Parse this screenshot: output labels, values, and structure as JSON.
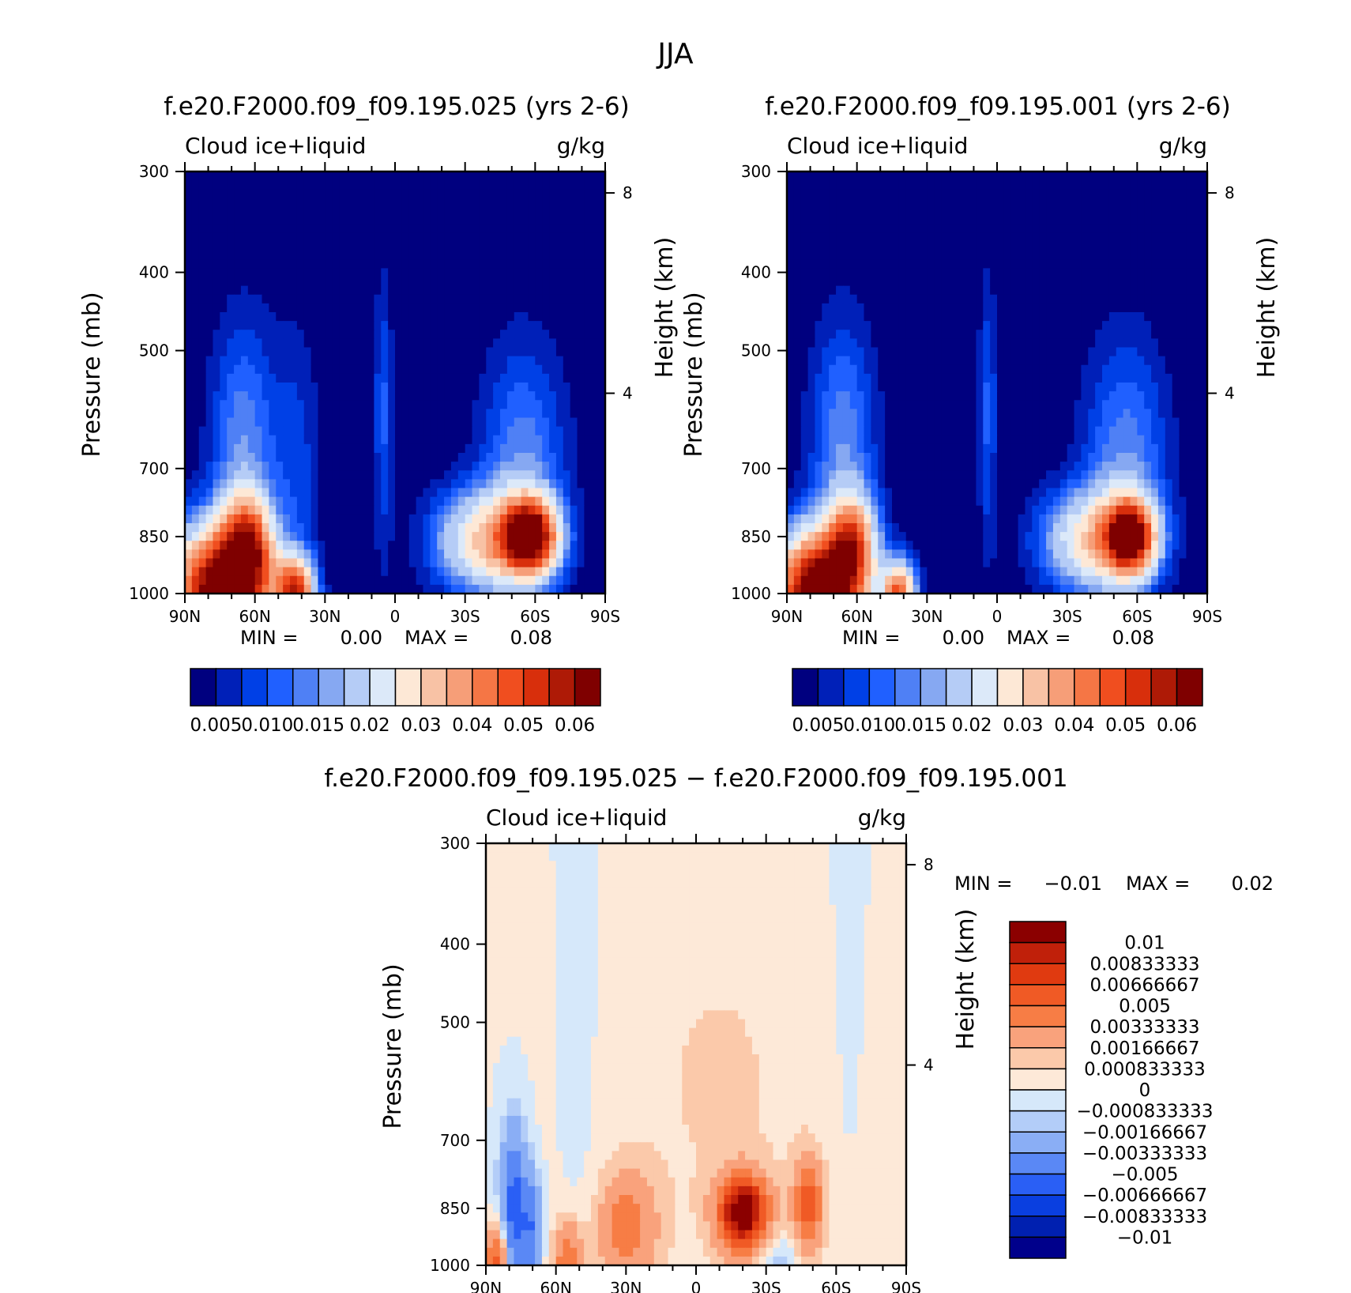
{
  "chart_data": [
    {
      "type": "contour",
      "title": "f.e20.F2000.f09_f09.195.025 (yrs 2-6)",
      "variable": "Cloud ice+liquid",
      "units": "g/kg",
      "xlabel": "",
      "ylabel": "Pressure (mb)",
      "y2label": "Height (km)",
      "x_ticks": [
        "90N",
        "60N",
        "30N",
        "0",
        "30S",
        "60S",
        "90S"
      ],
      "y_ticks": [
        300,
        400,
        500,
        700,
        850,
        1000
      ],
      "y2_ticks": [
        8,
        4
      ],
      "ylim": [
        1000,
        300
      ],
      "min_label": "MIN =",
      "min_value": "0.00",
      "max_label": "MAX =",
      "max_value": "0.08",
      "colorbar_labels": [
        "0.005",
        "0.010",
        "0.015",
        "0.02",
        "0.03",
        "0.04",
        "0.05",
        "0.06"
      ],
      "colors": [
        "#00007f",
        "#0020b8",
        "#0040e6",
        "#2060ff",
        "#4f80f5",
        "#86a8f2",
        "#b5ccf6",
        "#dce9f9",
        "#fde8d6",
        "#f8c2a5",
        "#f69e78",
        "#f57645",
        "#f04e1f",
        "#d82f0c",
        "#ae1a06",
        "#7f0000"
      ]
    },
    {
      "type": "contour",
      "title": "f.e20.F2000.f09_f09.195.001 (yrs 2-6)",
      "variable": "Cloud ice+liquid",
      "units": "g/kg",
      "xlabel": "",
      "ylabel": "Pressure (mb)",
      "y2label": "Height (km)",
      "x_ticks": [
        "90N",
        "60N",
        "30N",
        "0",
        "30S",
        "60S",
        "90S"
      ],
      "y_ticks": [
        300,
        400,
        500,
        700,
        850,
        1000
      ],
      "y2_ticks": [
        8,
        4
      ],
      "ylim": [
        1000,
        300
      ],
      "min_label": "MIN =",
      "min_value": "0.00",
      "max_label": "MAX =",
      "max_value": "0.08",
      "colorbar_labels": [
        "0.005",
        "0.010",
        "0.015",
        "0.02",
        "0.03",
        "0.04",
        "0.05",
        "0.06"
      ],
      "colors": [
        "#00007f",
        "#0020b8",
        "#0040e6",
        "#2060ff",
        "#4f80f5",
        "#86a8f2",
        "#b5ccf6",
        "#dce9f9",
        "#fde8d6",
        "#f8c2a5",
        "#f69e78",
        "#f57645",
        "#f04e1f",
        "#d82f0c",
        "#ae1a06",
        "#7f0000"
      ]
    },
    {
      "type": "contour",
      "title": "f.e20.F2000.f09_f09.195.025 − f.e20.F2000.f09_f09.195.001",
      "variable": "Cloud ice+liquid",
      "units": "g/kg",
      "xlabel": "",
      "ylabel": "Pressure (mb)",
      "y2label": "Height (km)",
      "x_ticks": [
        "90N",
        "60N",
        "30N",
        "0",
        "30S",
        "60S",
        "90S"
      ],
      "y_ticks": [
        300,
        400,
        500,
        700,
        850,
        1000
      ],
      "y2_ticks": [
        8,
        4
      ],
      "ylim": [
        1000,
        300
      ],
      "min_label": "MIN =",
      "min_value": "−0.01",
      "max_label": "MAX =",
      "max_value": "0.02",
      "colorbar_labels": [
        "0.01",
        "0.00833333",
        "0.00666667",
        "0.005",
        "0.00333333",
        "0.00166667",
        "0.000833333",
        "0",
        "−0.000833333",
        "−0.00166667",
        "−0.00333333",
        "−0.005",
        "−0.00666667",
        "−0.00833333",
        "−0.01"
      ],
      "colors": [
        "#8b0000",
        "#c0200a",
        "#e03a10",
        "#f05a25",
        "#f77d45",
        "#f9a27c",
        "#fbc9aa",
        "#fde9d8",
        "#d6e8fa",
        "#b3cdf8",
        "#8aaef5",
        "#5a88f5",
        "#2a5ff5",
        "#0a3fe0",
        "#0020b0",
        "#00008b"
      ]
    }
  ],
  "figure": {
    "title": "JJA"
  }
}
